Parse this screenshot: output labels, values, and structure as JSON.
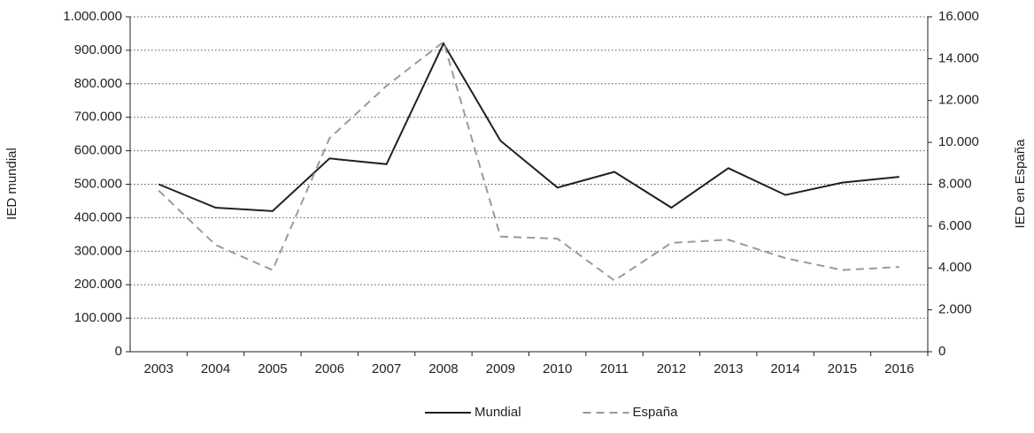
{
  "chart_data": {
    "type": "line",
    "categories": [
      "2003",
      "2004",
      "2005",
      "2006",
      "2007",
      "2008",
      "2009",
      "2010",
      "2011",
      "2012",
      "2013",
      "2014",
      "2015",
      "2016"
    ],
    "ylabel": "IED mundial",
    "y2label": "IED en España",
    "series": [
      {
        "name": "Mundial",
        "color": "#231f20",
        "dashed": false,
        "axis": "y",
        "values": [
          500000,
          430000,
          420000,
          577000,
          560000,
          920000,
          630000,
          490000,
          537000,
          430000,
          548000,
          468000,
          505000,
          522000
        ]
      },
      {
        "name": "España",
        "color": "#9a9a9a",
        "dashed": true,
        "axis": "y2",
        "values": [
          7700,
          5100,
          3900,
          10200,
          12700,
          14800,
          5500,
          5400,
          3400,
          5200,
          5350,
          4470,
          3900,
          4050
        ]
      }
    ],
    "ylim": [
      0,
      1000000
    ],
    "yticks": [
      0,
      {
        "value": 100000,
        "label": "100.000"
      },
      {
        "value": 200000,
        "label": "200.000"
      },
      {
        "value": 300000,
        "label": "300.000"
      },
      {
        "value": 400000,
        "label": "400.000"
      },
      {
        "value": 500000,
        "label": "500.000"
      },
      {
        "value": 600000,
        "label": "600.000"
      },
      {
        "value": 700000,
        "label": "700.000"
      },
      {
        "value": 800000,
        "label": "800.000"
      },
      {
        "value": 900000,
        "label": "900.000"
      },
      {
        "value": 1000000,
        "label": "1.000.000"
      }
    ],
    "y2lim": [
      0,
      16000
    ],
    "y2ticks": [
      0,
      {
        "value": 2000,
        "label": "2.000"
      },
      {
        "value": 4000,
        "label": "4.000"
      },
      {
        "value": 6000,
        "label": "6.000"
      },
      {
        "value": 8000,
        "label": "8.000"
      },
      {
        "value": 10000,
        "label": "10.000"
      },
      {
        "value": 12000,
        "label": "12.000"
      },
      {
        "value": 14000,
        "label": "14.000"
      },
      {
        "value": 16000,
        "label": "16.000"
      }
    ],
    "grid": true
  }
}
